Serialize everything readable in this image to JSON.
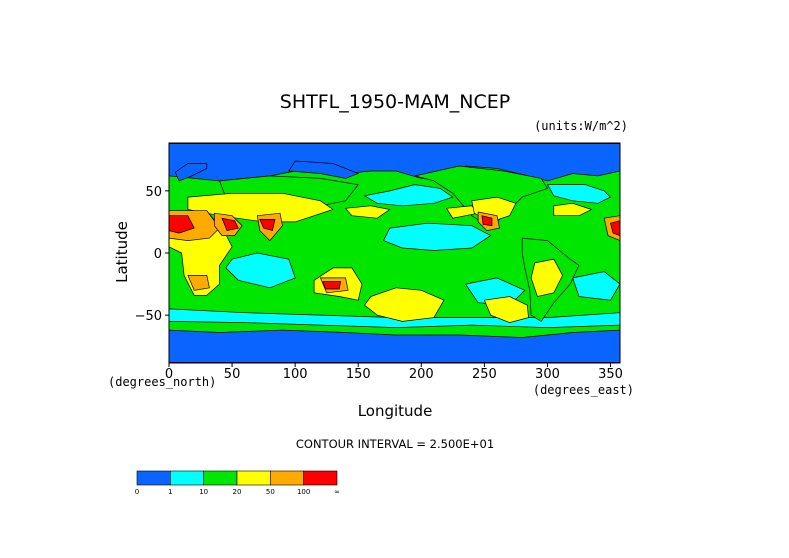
{
  "chart_data": {
    "type": "heatmap",
    "title": "SHTFL_1950-MAM_NCEP",
    "units_label": "(units:W/m^2)",
    "xlabel": "Longitude",
    "ylabel": "Latitude",
    "x_unit_note": "(degrees_east)",
    "y_unit_note": "(degrees_north)",
    "xlim": [
      0,
      357.5
    ],
    "ylim": [
      -88.5,
      88.5
    ],
    "x_ticks": [
      {
        "value": 0,
        "label": "0"
      },
      {
        "value": 50,
        "label": "50"
      },
      {
        "value": 100,
        "label": "100"
      },
      {
        "value": 150,
        "label": "150"
      },
      {
        "value": 200,
        "label": "200"
      },
      {
        "value": 250,
        "label": "250"
      },
      {
        "value": 300,
        "label": "300"
      },
      {
        "value": 350,
        "label": "350"
      }
    ],
    "y_ticks": [
      {
        "value": 50,
        "label": "50"
      },
      {
        "value": 0,
        "label": "0"
      },
      {
        "value": -50,
        "label": "−50"
      }
    ],
    "contour_interval_text": "CONTOUR INTERVAL = 2.500E+01",
    "colorbar": {
      "labels": [
        "0",
        "1",
        "10",
        "20",
        "50",
        "100",
        "∞"
      ],
      "colors": [
        "#0a64ff",
        "#00ffff",
        "#00e600",
        "#ffff00",
        "#ffaa00",
        "#ff0000"
      ]
    },
    "regions": [
      {
        "name": "ocean-background",
        "bin": 2,
        "points": [
          [
            0,
            88
          ],
          [
            357.5,
            88
          ],
          [
            357.5,
            -88
          ],
          [
            0,
            -88
          ]
        ]
      },
      {
        "name": "arctic",
        "bin": 0,
        "points": [
          [
            0,
            88
          ],
          [
            357.5,
            88
          ],
          [
            357.5,
            66
          ],
          [
            340,
            62
          ],
          [
            320,
            64
          ],
          [
            300,
            58
          ],
          [
            285,
            62
          ],
          [
            260,
            68
          ],
          [
            235,
            70
          ],
          [
            220,
            58
          ],
          [
            200,
            60
          ],
          [
            180,
            66
          ],
          [
            160,
            66
          ],
          [
            140,
            64
          ],
          [
            120,
            66
          ],
          [
            100,
            66
          ],
          [
            80,
            62
          ],
          [
            60,
            60
          ],
          [
            40,
            58
          ],
          [
            20,
            60
          ],
          [
            0,
            62
          ]
        ]
      },
      {
        "name": "antarctic",
        "bin": 0,
        "points": [
          [
            0,
            -62
          ],
          [
            40,
            -64
          ],
          [
            90,
            -62
          ],
          [
            140,
            -64
          ],
          [
            180,
            -66
          ],
          [
            230,
            -66
          ],
          [
            280,
            -68
          ],
          [
            320,
            -64
          ],
          [
            357.5,
            -62
          ],
          [
            357.5,
            -88
          ],
          [
            0,
            -88
          ]
        ]
      },
      {
        "name": "scand-cold",
        "bin": 0,
        "points": [
          [
            8,
            58
          ],
          [
            18,
            62
          ],
          [
            30,
            68
          ],
          [
            30,
            72
          ],
          [
            15,
            72
          ],
          [
            5,
            65
          ]
        ]
      },
      {
        "name": "siberia-cold",
        "bin": 0,
        "points": [
          [
            95,
            66
          ],
          [
            120,
            64
          ],
          [
            140,
            60
          ],
          [
            150,
            64
          ],
          [
            130,
            72
          ],
          [
            100,
            74
          ]
        ]
      },
      {
        "name": "n-atlantic-cyan",
        "bin": 1,
        "points": [
          [
            300,
            55
          ],
          [
            330,
            55
          ],
          [
            345,
            50
          ],
          [
            350,
            45
          ],
          [
            340,
            40
          ],
          [
            320,
            42
          ],
          [
            305,
            46
          ]
        ]
      },
      {
        "name": "n-pacific-cyan",
        "bin": 1,
        "points": [
          [
            155,
            46
          ],
          [
            175,
            50
          ],
          [
            195,
            55
          ],
          [
            215,
            52
          ],
          [
            225,
            45
          ],
          [
            210,
            40
          ],
          [
            185,
            38
          ],
          [
            165,
            40
          ]
        ]
      },
      {
        "name": "cent-pacific-cyan",
        "bin": 1,
        "points": [
          [
            175,
            20
          ],
          [
            205,
            24
          ],
          [
            240,
            22
          ],
          [
            255,
            14
          ],
          [
            240,
            4
          ],
          [
            210,
            2
          ],
          [
            185,
            4
          ],
          [
            170,
            10
          ]
        ]
      },
      {
        "name": "indian-cyan",
        "bin": 1,
        "points": [
          [
            50,
            -5
          ],
          [
            70,
            0
          ],
          [
            95,
            -5
          ],
          [
            100,
            -20
          ],
          [
            80,
            -28
          ],
          [
            55,
            -22
          ],
          [
            45,
            -12
          ]
        ]
      },
      {
        "name": "s-ocean-cyan",
        "bin": 1,
        "points": [
          [
            0,
            -45
          ],
          [
            60,
            -48
          ],
          [
            120,
            -50
          ],
          [
            180,
            -52
          ],
          [
            240,
            -52
          ],
          [
            300,
            -52
          ],
          [
            357.5,
            -48
          ],
          [
            357.5,
            -58
          ],
          [
            300,
            -60
          ],
          [
            240,
            -58
          ],
          [
            180,
            -60
          ],
          [
            120,
            -58
          ],
          [
            60,
            -56
          ],
          [
            0,
            -55
          ]
        ]
      },
      {
        "name": "s-pacific-cyan",
        "bin": 1,
        "points": [
          [
            235,
            -25
          ],
          [
            260,
            -20
          ],
          [
            282,
            -30
          ],
          [
            270,
            -42
          ],
          [
            245,
            -40
          ]
        ]
      },
      {
        "name": "s-atlantic-cyan",
        "bin": 1,
        "points": [
          [
            320,
            -20
          ],
          [
            345,
            -15
          ],
          [
            357.5,
            -25
          ],
          [
            350,
            -38
          ],
          [
            325,
            -35
          ]
        ]
      },
      {
        "name": "n-america-green",
        "bin": 2,
        "points": [
          [
            195,
            62
          ],
          [
            230,
            70
          ],
          [
            265,
            66
          ],
          [
            295,
            60
          ],
          [
            300,
            52
          ],
          [
            280,
            45
          ],
          [
            265,
            30
          ],
          [
            255,
            20
          ],
          [
            240,
            30
          ],
          [
            225,
            48
          ],
          [
            210,
            58
          ]
        ]
      },
      {
        "name": "s-america-green",
        "bin": 2,
        "points": [
          [
            280,
            12
          ],
          [
            300,
            10
          ],
          [
            318,
            -5
          ],
          [
            325,
            -10
          ],
          [
            318,
            -25
          ],
          [
            305,
            -40
          ],
          [
            295,
            -55
          ],
          [
            287,
            -50
          ],
          [
            286,
            -30
          ],
          [
            282,
            -12
          ],
          [
            280,
            0
          ]
        ]
      },
      {
        "name": "asia-green",
        "bin": 2,
        "points": [
          [
            40,
            58
          ],
          [
            80,
            62
          ],
          [
            120,
            60
          ],
          [
            150,
            55
          ],
          [
            140,
            42
          ],
          [
            120,
            38
          ],
          [
            100,
            45
          ],
          [
            70,
            45
          ],
          [
            45,
            45
          ]
        ]
      },
      {
        "name": "n-atlantic-yellow",
        "bin": 3,
        "points": [
          [
            305,
            38
          ],
          [
            320,
            40
          ],
          [
            335,
            35
          ],
          [
            325,
            30
          ],
          [
            305,
            30
          ]
        ]
      },
      {
        "name": "n-pacific-yellow",
        "bin": 3,
        "points": [
          [
            140,
            36
          ],
          [
            160,
            38
          ],
          [
            175,
            35
          ],
          [
            165,
            28
          ],
          [
            145,
            30
          ]
        ]
      },
      {
        "name": "ne-pacific-yellow",
        "bin": 3,
        "points": [
          [
            220,
            36
          ],
          [
            240,
            38
          ],
          [
            245,
            32
          ],
          [
            225,
            28
          ]
        ]
      },
      {
        "name": "s-pacific-yellow",
        "bin": 3,
        "points": [
          [
            160,
            -35
          ],
          [
            180,
            -28
          ],
          [
            200,
            -30
          ],
          [
            218,
            -38
          ],
          [
            210,
            -52
          ],
          [
            185,
            -55
          ],
          [
            165,
            -50
          ],
          [
            155,
            -42
          ]
        ]
      },
      {
        "name": "se-pacific-yellow",
        "bin": 3,
        "points": [
          [
            250,
            -38
          ],
          [
            270,
            -35
          ],
          [
            284,
            -42
          ],
          [
            285,
            -52
          ],
          [
            270,
            -56
          ],
          [
            255,
            -50
          ]
        ]
      },
      {
        "name": "asia-yellow",
        "bin": 3,
        "points": [
          [
            15,
            45
          ],
          [
            50,
            48
          ],
          [
            90,
            48
          ],
          [
            120,
            42
          ],
          [
            130,
            35
          ],
          [
            100,
            25
          ],
          [
            75,
            25
          ],
          [
            40,
            30
          ],
          [
            15,
            35
          ]
        ]
      },
      {
        "name": "n-america-yellow",
        "bin": 3,
        "points": [
          [
            240,
            42
          ],
          [
            260,
            45
          ],
          [
            275,
            40
          ],
          [
            270,
            30
          ],
          [
            255,
            25
          ],
          [
            242,
            32
          ]
        ]
      },
      {
        "name": "s-america-yellow",
        "bin": 3,
        "points": [
          [
            290,
            -8
          ],
          [
            305,
            -5
          ],
          [
            312,
            -18
          ],
          [
            305,
            -32
          ],
          [
            292,
            -35
          ],
          [
            287,
            -20
          ]
        ]
      },
      {
        "name": "africa-yellow",
        "bin": 3,
        "points": [
          [
            0,
            32
          ],
          [
            30,
            34
          ],
          [
            45,
            15
          ],
          [
            50,
            5
          ],
          [
            40,
            -10
          ],
          [
            40,
            -25
          ],
          [
            30,
            -34
          ],
          [
            20,
            -34
          ],
          [
            12,
            -18
          ],
          [
            10,
            0
          ],
          [
            0,
            5
          ]
        ]
      },
      {
        "name": "australia-yellow",
        "bin": 3,
        "points": [
          [
            115,
            -22
          ],
          [
            130,
            -12
          ],
          [
            145,
            -12
          ],
          [
            153,
            -25
          ],
          [
            150,
            -38
          ],
          [
            135,
            -35
          ],
          [
            115,
            -32
          ]
        ]
      },
      {
        "name": "sahara-orange",
        "bin": 4,
        "points": [
          [
            0,
            34
          ],
          [
            30,
            34
          ],
          [
            40,
            20
          ],
          [
            32,
            12
          ],
          [
            15,
            10
          ],
          [
            0,
            12
          ]
        ]
      },
      {
        "name": "arabia-orange",
        "bin": 4,
        "points": [
          [
            36,
            32
          ],
          [
            50,
            30
          ],
          [
            58,
            22
          ],
          [
            52,
            14
          ],
          [
            42,
            14
          ],
          [
            36,
            22
          ]
        ]
      },
      {
        "name": "india-orange",
        "bin": 4,
        "points": [
          [
            70,
            30
          ],
          [
            88,
            32
          ],
          [
            90,
            22
          ],
          [
            80,
            10
          ],
          [
            72,
            18
          ]
        ]
      },
      {
        "name": "mexico-orange",
        "bin": 4,
        "points": [
          [
            245,
            33
          ],
          [
            260,
            30
          ],
          [
            262,
            20
          ],
          [
            252,
            18
          ],
          [
            245,
            25
          ]
        ]
      },
      {
        "name": "s-africa-orange",
        "bin": 4,
        "points": [
          [
            15,
            -18
          ],
          [
            30,
            -18
          ],
          [
            32,
            -28
          ],
          [
            20,
            -30
          ]
        ]
      },
      {
        "name": "aus-orange",
        "bin": 4,
        "points": [
          [
            120,
            -20
          ],
          [
            140,
            -20
          ],
          [
            142,
            -30
          ],
          [
            125,
            -32
          ]
        ]
      },
      {
        "name": "w-africa-orange",
        "bin": 4,
        "points": [
          [
            345,
            28
          ],
          [
            357.5,
            30
          ],
          [
            357.5,
            10
          ],
          [
            348,
            14
          ]
        ]
      },
      {
        "name": "sahara-red",
        "bin": 5,
        "points": [
          [
            0,
            30
          ],
          [
            15,
            30
          ],
          [
            20,
            20
          ],
          [
            8,
            16
          ],
          [
            0,
            18
          ]
        ]
      },
      {
        "name": "arabia-red",
        "bin": 5,
        "points": [
          [
            42,
            28
          ],
          [
            52,
            26
          ],
          [
            55,
            20
          ],
          [
            46,
            18
          ]
        ]
      },
      {
        "name": "india-red",
        "bin": 5,
        "points": [
          [
            72,
            27
          ],
          [
            84,
            27
          ],
          [
            82,
            18
          ],
          [
            75,
            20
          ]
        ]
      },
      {
        "name": "mexico-red",
        "bin": 5,
        "points": [
          [
            248,
            30
          ],
          [
            256,
            28
          ],
          [
            256,
            22
          ],
          [
            249,
            23
          ]
        ]
      },
      {
        "name": "aus-red",
        "bin": 5,
        "points": [
          [
            122,
            -23
          ],
          [
            136,
            -23
          ],
          [
            135,
            -29
          ],
          [
            124,
            -29
          ]
        ]
      },
      {
        "name": "w-africa-red",
        "bin": 5,
        "points": [
          [
            350,
            24
          ],
          [
            357.5,
            26
          ],
          [
            357.5,
            14
          ],
          [
            352,
            16
          ]
        ]
      }
    ]
  }
}
